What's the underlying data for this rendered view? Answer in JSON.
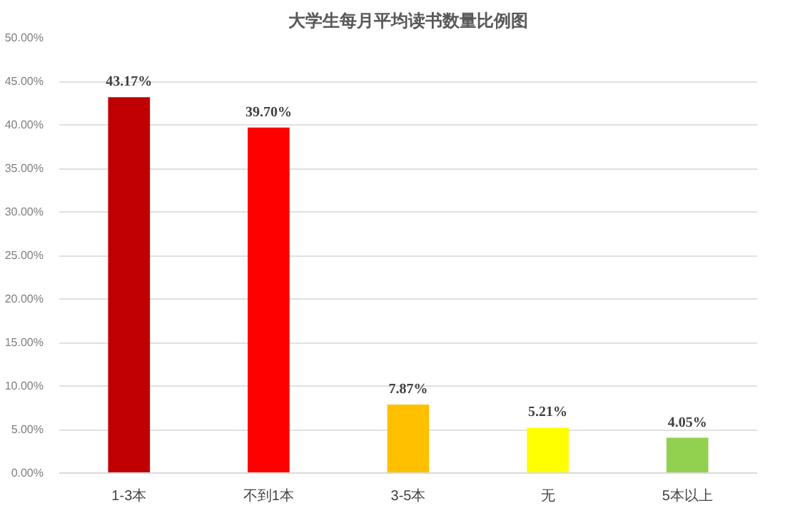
{
  "chart_data": {
    "type": "bar",
    "title": "大学生每月平均读书数量比例图",
    "categories": [
      "1-3本",
      "不到1本",
      "3-5本",
      "无",
      "5本以上"
    ],
    "values": [
      43.17,
      39.7,
      7.87,
      5.21,
      4.05
    ],
    "colors": [
      "#c00000",
      "#ff0000",
      "#ffc000",
      "#ffff00",
      "#92d050"
    ],
    "value_labels": [
      "43.17%",
      "39.70%",
      "7.87%",
      "5.21%",
      "4.05%"
    ],
    "ylim": [
      0,
      50
    ],
    "yticks": [
      {
        "value": 0,
        "label": "0.00%"
      },
      {
        "value": 5,
        "label": "5.00%"
      },
      {
        "value": 10,
        "label": "10.00%"
      },
      {
        "value": 15,
        "label": "15.00%"
      },
      {
        "value": 20,
        "label": "20.00%"
      },
      {
        "value": 25,
        "label": "25.00%"
      },
      {
        "value": 30,
        "label": "30.00%"
      },
      {
        "value": 35,
        "label": "35.00%"
      },
      {
        "value": 40,
        "label": "40.00%"
      },
      {
        "value": 45,
        "label": "45.00%"
      },
      {
        "value": 50,
        "label": "50.00%"
      }
    ],
    "grid": "y"
  }
}
